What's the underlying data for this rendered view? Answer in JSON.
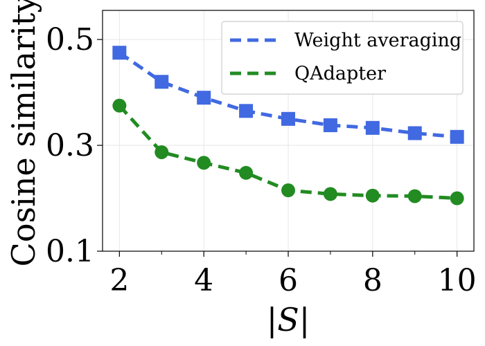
{
  "chart_data": {
    "type": "line",
    "xlabel": "|S|",
    "ylabel": "Cosine similarity",
    "xlim": [
      1.6,
      10.4
    ],
    "ylim": [
      0.1,
      0.555
    ],
    "x_ticks": [
      2,
      4,
      6,
      8,
      10
    ],
    "x_minor_ticks": [
      3,
      5,
      7,
      9
    ],
    "y_ticks": [
      0.1,
      0.3,
      0.5
    ],
    "y_tick_labels": [
      "0.1",
      "0.3",
      "0.5"
    ],
    "x_tick_labels": [
      "2",
      "4",
      "6",
      "8",
      "10"
    ],
    "grid": true,
    "legend_position": "top-right",
    "x": [
      2,
      3,
      4,
      5,
      6,
      7,
      8,
      9,
      10
    ],
    "series": [
      {
        "name": "Weight averaging",
        "color": "#4169e1",
        "marker": "square",
        "linestyle": "dashed",
        "values": [
          0.475,
          0.42,
          0.39,
          0.365,
          0.35,
          0.338,
          0.333,
          0.323,
          0.316
        ]
      },
      {
        "name": "QAdapter",
        "color": "#228b22",
        "marker": "circle",
        "linestyle": "dashed",
        "values": [
          0.375,
          0.287,
          0.267,
          0.248,
          0.215,
          0.208,
          0.205,
          0.204,
          0.2
        ]
      }
    ]
  }
}
